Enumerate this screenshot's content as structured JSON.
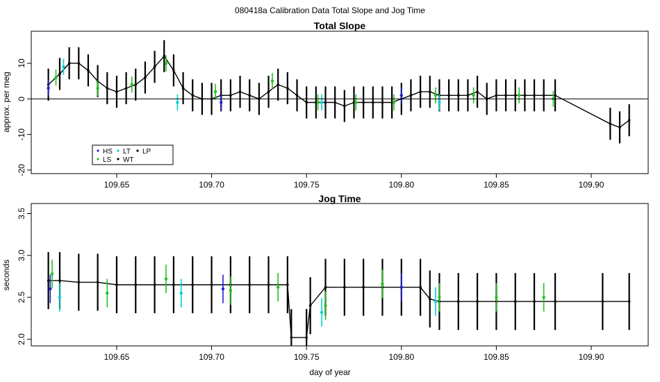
{
  "figure_title": "080418a   Calibration Data Total Slope and Jog Time",
  "xlabel": "day of year",
  "legend": {
    "entries": [
      {
        "label": "HS",
        "color": "#1f1fcf"
      },
      {
        "label": "LT",
        "color": "#00d0d0"
      },
      {
        "label": "LP",
        "color": "#000000"
      },
      {
        "label": "LS",
        "color": "#22c022"
      },
      {
        "label": "WT",
        "color": "#000000"
      }
    ]
  },
  "chart_data": [
    {
      "type": "line",
      "title": "Total Slope",
      "xlabel": "",
      "ylabel": "approx. per meg",
      "xlim": [
        109.605,
        109.93
      ],
      "ylim": [
        -21,
        19
      ],
      "x_ticks": [
        "109.65",
        "109.70",
        "109.75",
        "109.80",
        "109.85",
        "109.90"
      ],
      "y_ticks": [
        "-20",
        "-10",
        "0",
        "10"
      ],
      "grid": false,
      "reference_line_y": 0,
      "legend_position": "bottom-left",
      "series": [
        {
          "name": "WT",
          "color": "#000000",
          "x": [
            109.614,
            109.62,
            109.625,
            109.63,
            109.635,
            109.64,
            109.645,
            109.65,
            109.655,
            109.66,
            109.665,
            109.67,
            109.675,
            109.68,
            109.685,
            109.69,
            109.695,
            109.7,
            109.705,
            109.71,
            109.715,
            109.72,
            109.725,
            109.73,
            109.735,
            109.74,
            109.745,
            109.75,
            109.755,
            109.76,
            109.765,
            109.77,
            109.775,
            109.78,
            109.785,
            109.79,
            109.795,
            109.8,
            109.805,
            109.81,
            109.815,
            109.82,
            109.825,
            109.83,
            109.835,
            109.84,
            109.845,
            109.85,
            109.855,
            109.86,
            109.865,
            109.87,
            109.875,
            109.881,
            109.91,
            109.915,
            109.92
          ],
          "y": [
            4,
            7,
            10,
            10,
            8,
            5,
            3,
            2,
            3,
            4,
            6,
            9,
            12,
            8,
            3,
            1,
            0,
            0,
            1,
            1,
            2,
            1,
            0,
            2,
            4,
            3,
            1,
            -1,
            -1,
            -1,
            -1,
            -2,
            -1,
            -1,
            -1,
            -1,
            -1,
            0,
            1,
            2,
            2,
            1,
            1,
            1,
            1,
            2,
            0,
            1,
            1,
            1,
            1,
            1,
            1,
            1,
            -7,
            -8,
            -6
          ]
        },
        {
          "name": "LS",
          "color": "#22c022",
          "x": [
            109.618,
            109.64,
            109.658,
            109.676,
            109.702,
            109.732,
            109.756,
            109.776,
            109.796,
            109.818,
            109.838,
            109.862,
            109.88
          ],
          "y": [
            6,
            3,
            4,
            10,
            2,
            5,
            -1,
            -1,
            -1,
            1,
            1,
            1,
            0
          ]
        },
        {
          "name": "LT",
          "color": "#00d0d0",
          "x": [
            109.622,
            109.682,
            109.758,
            109.82
          ],
          "y": [
            9,
            -1,
            -1,
            -1
          ]
        },
        {
          "name": "HS",
          "color": "#1f1fcf",
          "x": [
            109.614,
            109.705,
            109.8
          ],
          "y": [
            3,
            -1,
            1
          ]
        }
      ]
    },
    {
      "type": "line",
      "title": "Jog Time",
      "xlabel": "day of year",
      "ylabel": "seconds",
      "xlim": [
        109.605,
        109.93
      ],
      "ylim": [
        1.92,
        3.62
      ],
      "x_ticks": [
        "109.65",
        "109.70",
        "109.75",
        "109.80",
        "109.85",
        "109.90"
      ],
      "y_ticks": [
        "2.0",
        "2.5",
        "3.0",
        "3.5"
      ],
      "grid": false,
      "series": [
        {
          "name": "WT",
          "color": "#000000",
          "x": [
            109.614,
            109.62,
            109.63,
            109.64,
            109.65,
            109.66,
            109.67,
            109.68,
            109.69,
            109.7,
            109.71,
            109.72,
            109.73,
            109.74,
            109.742,
            109.75,
            109.752,
            109.76,
            109.77,
            109.78,
            109.79,
            109.8,
            109.81,
            109.815,
            109.82,
            109.83,
            109.84,
            109.85,
            109.86,
            109.87,
            109.881,
            109.906,
            109.92
          ],
          "y": [
            2.7,
            2.7,
            2.68,
            2.68,
            2.65,
            2.65,
            2.65,
            2.65,
            2.65,
            2.65,
            2.65,
            2.65,
            2.65,
            2.65,
            2.02,
            2.02,
            2.4,
            2.62,
            2.62,
            2.62,
            2.62,
            2.62,
            2.62,
            2.48,
            2.45,
            2.45,
            2.45,
            2.45,
            2.45,
            2.45,
            2.45,
            2.45,
            2.45
          ]
        },
        {
          "name": "LS",
          "color": "#22c022",
          "x": [
            109.616,
            109.645,
            109.676,
            109.71,
            109.735,
            109.76,
            109.79,
            109.82,
            109.85,
            109.875
          ],
          "y": [
            2.78,
            2.55,
            2.72,
            2.58,
            2.62,
            2.4,
            2.66,
            2.5,
            2.5,
            2.5
          ]
        },
        {
          "name": "LT",
          "color": "#00d0d0",
          "x": [
            109.62,
            109.684,
            109.758,
            109.818
          ],
          "y": [
            2.5,
            2.55,
            2.32,
            2.45
          ]
        },
        {
          "name": "HS",
          "color": "#1f1fcf",
          "x": [
            109.615,
            109.706,
            109.8
          ],
          "y": [
            2.6,
            2.6,
            2.62
          ]
        }
      ]
    }
  ]
}
